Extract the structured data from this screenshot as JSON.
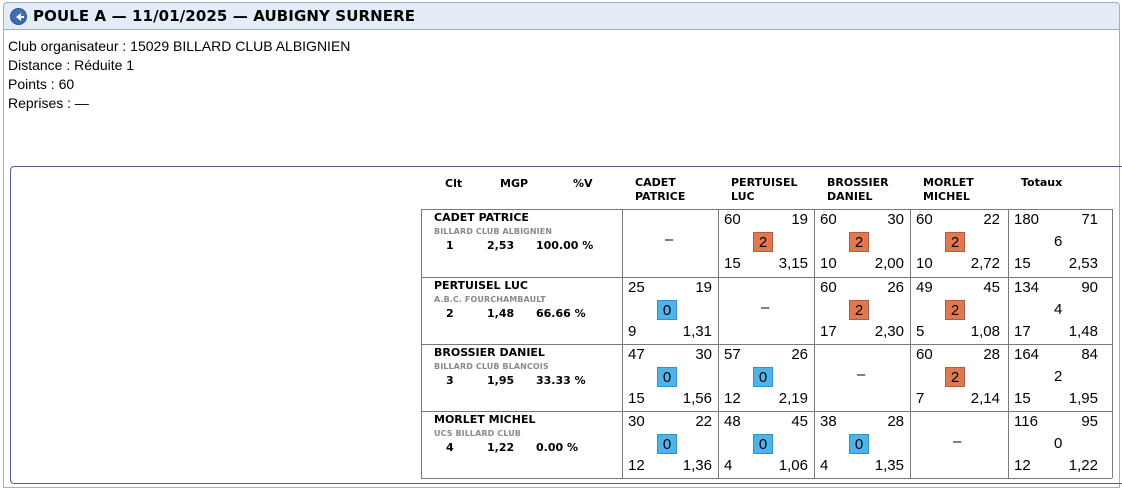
{
  "header": {
    "title": "POULE A — 11/01/2025 — AUBIGNY SURNERE"
  },
  "info": {
    "club": "Club organisateur : 15029 BILLARD CLUB ALBIGNIEN",
    "distance": "Distance : Réduite 1",
    "points": "Points : 60",
    "reprises": "Reprises : —"
  },
  "columns": {
    "clt": "Clt",
    "mgp": "MGP",
    "pv": "%V",
    "opponents": [
      {
        "l1": "CADET",
        "l2": "PATRICE"
      },
      {
        "l1": "PERTUISEL",
        "l2": "LUC"
      },
      {
        "l1": "BROSSIER",
        "l2": "DANIEL"
      },
      {
        "l1": "MORLET",
        "l2": "MICHEL"
      }
    ],
    "totals": "Totaux"
  },
  "self_mark": "–",
  "players": [
    {
      "name": "CADET PATRICE",
      "club": "BILLARD CLUB ALBIGNIEN",
      "rank": "1",
      "mgp": "2,53",
      "pct": "100.00 %",
      "matches": [
        null,
        {
          "pts": "60",
          "opp": "19",
          "mp": "2",
          "rep": "15",
          "moy": "3,15",
          "res": "win"
        },
        {
          "pts": "60",
          "opp": "30",
          "mp": "2",
          "rep": "10",
          "moy": "2,00",
          "res": "win"
        },
        {
          "pts": "60",
          "opp": "22",
          "mp": "2",
          "rep": "10",
          "moy": "2,72",
          "res": "win"
        }
      ],
      "totals": {
        "pts": "180",
        "opp": "71",
        "mp": "6",
        "rep": "15",
        "moy": "2,53"
      }
    },
    {
      "name": "PERTUISEL LUC",
      "club": "A.B.C. FOURCHAMBAULT",
      "rank": "2",
      "mgp": "1,48",
      "pct": "66.66 %",
      "matches": [
        {
          "pts": "25",
          "opp": "19",
          "mp": "0",
          "rep": "9",
          "moy": "1,31",
          "res": "loss"
        },
        null,
        {
          "pts": "60",
          "opp": "26",
          "mp": "2",
          "rep": "17",
          "moy": "2,30",
          "res": "win"
        },
        {
          "pts": "49",
          "opp": "45",
          "mp": "2",
          "rep": "5",
          "moy": "1,08",
          "res": "win"
        }
      ],
      "totals": {
        "pts": "134",
        "opp": "90",
        "mp": "4",
        "rep": "17",
        "moy": "1,48"
      }
    },
    {
      "name": "BROSSIER DANIEL",
      "club": "BILLARD CLUB BLANCOIS",
      "rank": "3",
      "mgp": "1,95",
      "pct": "33.33 %",
      "matches": [
        {
          "pts": "47",
          "opp": "30",
          "mp": "0",
          "rep": "15",
          "moy": "1,56",
          "res": "loss"
        },
        {
          "pts": "57",
          "opp": "26",
          "mp": "0",
          "rep": "12",
          "moy": "2,19",
          "res": "loss"
        },
        null,
        {
          "pts": "60",
          "opp": "28",
          "mp": "2",
          "rep": "7",
          "moy": "2,14",
          "res": "win"
        }
      ],
      "totals": {
        "pts": "164",
        "opp": "84",
        "mp": "2",
        "rep": "15",
        "moy": "1,95"
      }
    },
    {
      "name": "MORLET MICHEL",
      "club": "UCS BILLARD CLUB",
      "rank": "4",
      "mgp": "1,22",
      "pct": "0.00 %",
      "matches": [
        {
          "pts": "30",
          "opp": "22",
          "mp": "0",
          "rep": "12",
          "moy": "1,36",
          "res": "loss"
        },
        {
          "pts": "48",
          "opp": "45",
          "mp": "0",
          "rep": "4",
          "moy": "1,06",
          "res": "loss"
        },
        {
          "pts": "38",
          "opp": "28",
          "mp": "0",
          "rep": "4",
          "moy": "1,35",
          "res": "loss"
        },
        null
      ],
      "totals": {
        "pts": "116",
        "opp": "95",
        "mp": "0",
        "rep": "12",
        "moy": "1,22"
      }
    }
  ]
}
